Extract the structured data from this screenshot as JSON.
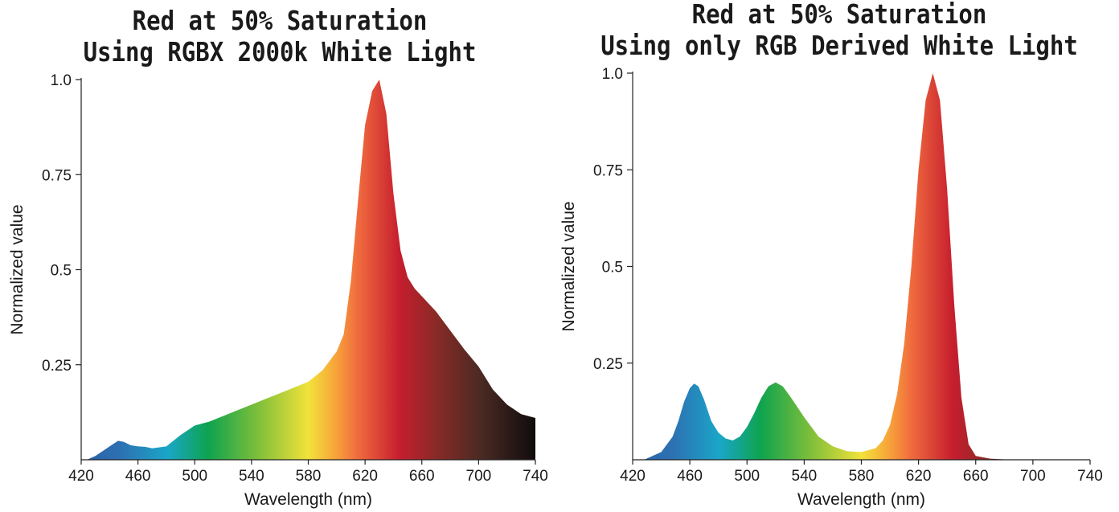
{
  "chart_data": [
    {
      "type": "area",
      "title_lines": [
        "Red at 50% Saturation",
        "Using RGBX 2000k White Light"
      ],
      "xlabel": "Wavelength (nm)",
      "ylabel": "Normalized value",
      "xlim": [
        420,
        740
      ],
      "ylim": [
        0,
        1.0
      ],
      "x_ticks": [
        "420",
        "460",
        "500",
        "540",
        "580",
        "620",
        "660",
        "700",
        "740"
      ],
      "y_ticks": [
        "1.0",
        "0.75",
        "0.5",
        "0.25"
      ],
      "y_tick_values": [
        1.0,
        0.75,
        0.5,
        0.25
      ],
      "grid": false,
      "x": [
        424,
        430,
        440,
        446,
        450,
        455,
        460,
        465,
        470,
        480,
        490,
        500,
        510,
        520,
        530,
        540,
        550,
        560,
        570,
        580,
        590,
        600,
        605,
        610,
        615,
        620,
        625,
        630,
        635,
        640,
        645,
        650,
        655,
        660,
        670,
        680,
        690,
        700,
        710,
        720,
        730,
        740
      ],
      "values": [
        0,
        0.01,
        0.035,
        0.05,
        0.047,
        0.038,
        0.035,
        0.034,
        0.03,
        0.035,
        0.065,
        0.09,
        0.1,
        0.115,
        0.13,
        0.145,
        0.16,
        0.175,
        0.19,
        0.205,
        0.235,
        0.285,
        0.33,
        0.47,
        0.68,
        0.88,
        0.97,
        1.0,
        0.91,
        0.7,
        0.55,
        0.48,
        0.45,
        0.43,
        0.39,
        0.34,
        0.29,
        0.245,
        0.185,
        0.145,
        0.12,
        0.11
      ]
    },
    {
      "type": "area",
      "title_lines": [
        "Red at 50% Saturation",
        "Using only RGB Derived White Light"
      ],
      "xlabel": "Wavelength (nm)",
      "ylabel": "Normalized value",
      "xlim": [
        420,
        740
      ],
      "ylim": [
        0,
        1.0
      ],
      "x_ticks": [
        "420",
        "460",
        "500",
        "540",
        "580",
        "620",
        "660",
        "700",
        "740"
      ],
      "y_ticks": [
        "1.0",
        "0.75",
        "0.5",
        "0.25"
      ],
      "y_tick_values": [
        1.0,
        0.75,
        0.5,
        0.25
      ],
      "grid": false,
      "x": [
        428,
        440,
        448,
        452,
        456,
        460,
        463,
        466,
        470,
        475,
        480,
        485,
        490,
        495,
        500,
        505,
        510,
        515,
        520,
        525,
        530,
        540,
        550,
        560,
        570,
        580,
        590,
        595,
        600,
        605,
        610,
        615,
        620,
        625,
        630,
        635,
        640,
        645,
        650,
        655,
        660,
        670,
        680,
        690,
        700,
        720,
        740
      ],
      "values": [
        0,
        0.02,
        0.06,
        0.1,
        0.15,
        0.185,
        0.197,
        0.19,
        0.155,
        0.1,
        0.07,
        0.055,
        0.05,
        0.06,
        0.085,
        0.12,
        0.16,
        0.19,
        0.2,
        0.19,
        0.165,
        0.11,
        0.06,
        0.035,
        0.022,
        0.02,
        0.03,
        0.05,
        0.09,
        0.17,
        0.3,
        0.5,
        0.75,
        0.93,
        1.0,
        0.93,
        0.7,
        0.4,
        0.16,
        0.04,
        0.01,
        0.003,
        0.001,
        0,
        0,
        0,
        0
      ]
    }
  ]
}
